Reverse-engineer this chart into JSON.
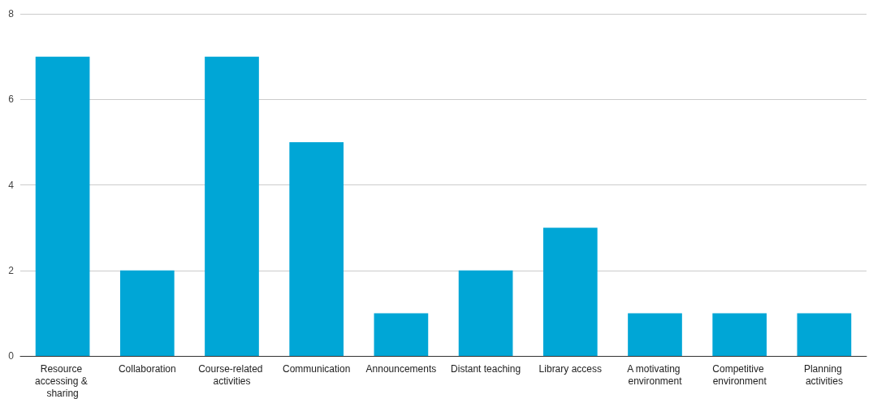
{
  "chart_data": {
    "type": "bar",
    "categories": [
      "Resource accessing & sharing",
      "Collaboration",
      "Course-related activities",
      "Communication",
      "Announcements",
      "Distant teaching",
      "Library access",
      "A motivating environment",
      "Competitive environment",
      "Planning activities"
    ],
    "values": [
      7,
      2,
      7,
      5,
      1,
      2,
      3,
      1,
      1,
      1
    ],
    "color": "#00a6d6",
    "ylim": [
      0,
      8
    ],
    "yticks": [
      0,
      2,
      4,
      6,
      8
    ],
    "grid": "y"
  }
}
